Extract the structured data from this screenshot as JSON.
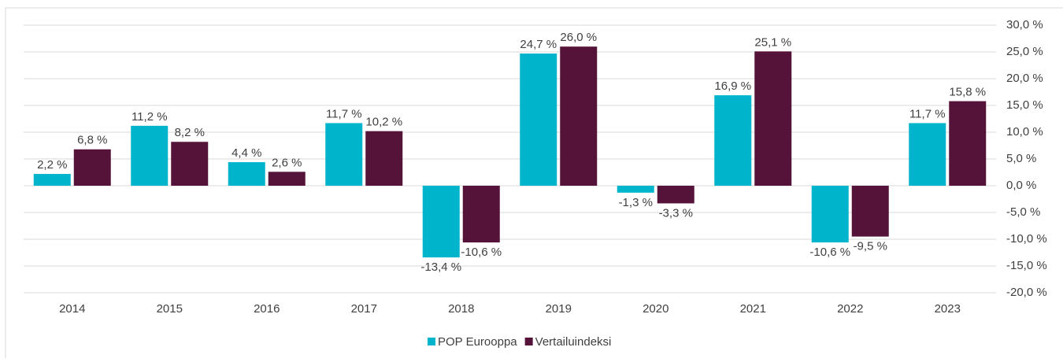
{
  "chart_data": {
    "type": "bar",
    "categories": [
      "2014",
      "2015",
      "2016",
      "2017",
      "2018",
      "2019",
      "2020",
      "2021",
      "2022",
      "2023"
    ],
    "series": [
      {
        "name": "POP Eurooppa",
        "color": "#00b4cc",
        "values": [
          2.2,
          11.2,
          4.4,
          11.7,
          -13.4,
          24.7,
          -1.3,
          16.9,
          -10.6,
          11.7
        ],
        "value_labels": [
          "2,2 %",
          "11,2 %",
          "4,4 %",
          "11,7 %",
          "-13,4 %",
          "24,7 %",
          "-1,3 %",
          "16,9 %",
          "-10,6 %",
          "11,7 %"
        ]
      },
      {
        "name": "Vertailuindeksi",
        "color": "#56133a",
        "values": [
          6.8,
          8.2,
          2.6,
          10.2,
          -10.6,
          26.0,
          -3.3,
          25.1,
          -9.5,
          15.8
        ],
        "value_labels": [
          "6,8 %",
          "8,2 %",
          "2,6 %",
          "10,2 %",
          "-10,6 %",
          "26,0 %",
          "-3,3 %",
          "25,1 %",
          "-9,5 %",
          "15,8 %"
        ]
      }
    ],
    "ylim": [
      -20,
      30
    ],
    "yticks": [
      {
        "value": -20,
        "label": "-20,0 %"
      },
      {
        "value": -15,
        "label": "-15,0 %"
      },
      {
        "value": -10,
        "label": "-10,0 %"
      },
      {
        "value": -5,
        "label": "-5,0 %"
      },
      {
        "value": 0,
        "label": "0,0 %"
      },
      {
        "value": 5,
        "label": "5,0 %"
      },
      {
        "value": 10,
        "label": "10,0 %"
      },
      {
        "value": 15,
        "label": "15,0 %"
      },
      {
        "value": 20,
        "label": "20,0 %"
      },
      {
        "value": 25,
        "label": "25,0 %"
      },
      {
        "value": 30,
        "label": "30,0 %"
      }
    ],
    "grid": true,
    "legend": "bottom"
  }
}
